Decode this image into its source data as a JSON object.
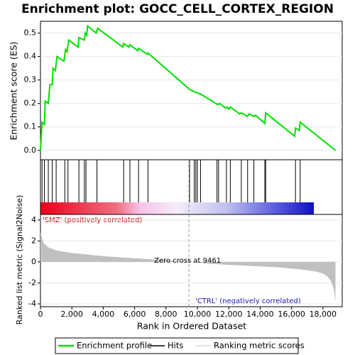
{
  "chart_data": [
    {
      "type": "line",
      "title": "Enrichment plot: GOCC_CELL_CORTEX_REGION",
      "ylabel": "Enrichment score (ES)",
      "xlim": [
        0,
        19230
      ],
      "ylim": [
        -0.04,
        0.55
      ],
      "yticks": [
        {
          "value": 0,
          "label": "0.0"
        },
        {
          "value": 0.1,
          "label": "0.1"
        },
        {
          "value": 0.2,
          "label": "0.2"
        },
        {
          "value": 0.3,
          "label": "0.3"
        },
        {
          "value": 0.4,
          "label": "0.4"
        },
        {
          "value": 0.5,
          "label": "0.5"
        }
      ],
      "grid": true,
      "series": [
        {
          "name": "Enrichment profile",
          "color": "#00e000",
          "x": [
            0,
            100,
            250,
            300,
            500,
            600,
            750,
            800,
            950,
            1050,
            1500,
            1600,
            1700,
            1800,
            2400,
            2450,
            2800,
            2850,
            2950,
            3000,
            3550,
            3650,
            5250,
            5300,
            5650,
            5700,
            6200,
            6250,
            6800,
            6850,
            9500,
            9800,
            10200,
            11300,
            11400,
            11800,
            11900,
            12000,
            12100,
            12700,
            12800,
            13200,
            13300,
            13600,
            13700,
            14300,
            14350,
            16200,
            16250,
            16500,
            16550,
            18800
          ],
          "values": [
            0,
            0.12,
            0.11,
            0.21,
            0.2,
            0.28,
            0.28,
            0.35,
            0.34,
            0.4,
            0.38,
            0.43,
            0.42,
            0.47,
            0.44,
            0.48,
            0.47,
            0.5,
            0.49,
            0.53,
            0.5,
            0.52,
            0.44,
            0.455,
            0.44,
            0.45,
            0.425,
            0.435,
            0.41,
            0.415,
            0.26,
            0.25,
            0.24,
            0.195,
            0.2,
            0.18,
            0.185,
            0.175,
            0.185,
            0.155,
            0.16,
            0.145,
            0.155,
            0.145,
            0.15,
            0.115,
            0.16,
            0.06,
            0.095,
            0.085,
            0.12,
            0
          ]
        }
      ]
    },
    {
      "type": "rug",
      "xlim": [
        0,
        19230
      ],
      "series": [
        {
          "name": "Hits",
          "color": "#000000",
          "x": [
            100,
            250,
            500,
            750,
            1000,
            1550,
            1750,
            2450,
            2800,
            2900,
            3600,
            5300,
            5700,
            6250,
            6850,
            9500,
            9800,
            9900,
            10000,
            10200,
            11250,
            11350,
            11850,
            12100,
            12800,
            13200,
            13600,
            14300,
            14350,
            16250,
            16550
          ]
        }
      ]
    },
    {
      "type": "area",
      "ylabel": "Ranked list metric (Signal2Noise)",
      "xlabel": "Rank in Ordered Dataset",
      "xlim": [
        0,
        19230
      ],
      "ylim": [
        -4.27,
        4.53
      ],
      "xticks": [
        {
          "value": 0,
          "label": "0"
        },
        {
          "value": 2000,
          "label": "2,000"
        },
        {
          "value": 4000,
          "label": "4,000"
        },
        {
          "value": 6000,
          "label": "6,000"
        },
        {
          "value": 8000,
          "label": "8,000"
        },
        {
          "value": 10000,
          "label": "10,000"
        },
        {
          "value": 12000,
          "label": "12,000"
        },
        {
          "value": 14000,
          "label": "14,000"
        },
        {
          "value": 16000,
          "label": "16,000"
        },
        {
          "value": 18000,
          "label": "18,000"
        }
      ],
      "yticks": [
        4,
        2,
        0,
        -2,
        -4
      ],
      "grid": true,
      "series": [
        {
          "name": "Ranking metric scores",
          "color": "#c0c0c0",
          "x": [
            0,
            200,
            500,
            1000,
            2000,
            4000,
            6000,
            8000,
            9461,
            11000,
            13000,
            15000,
            16500,
            17500,
            18000,
            18300,
            18500,
            18700,
            18800
          ],
          "values": [
            2.8,
            1.8,
            1.4,
            1.1,
            0.85,
            0.55,
            0.35,
            0.15,
            0,
            -0.2,
            -0.35,
            -0.5,
            -0.7,
            -0.9,
            -1.1,
            -1.4,
            -1.8,
            -2.6,
            -3.8
          ]
        }
      ],
      "pos_label": "'SMZ' (positively correlated)",
      "neg_label": "'CTRL' (negatively correlated)",
      "zero_cross": {
        "value": 9461,
        "label": "Zero cross at 9461"
      }
    }
  ]
}
